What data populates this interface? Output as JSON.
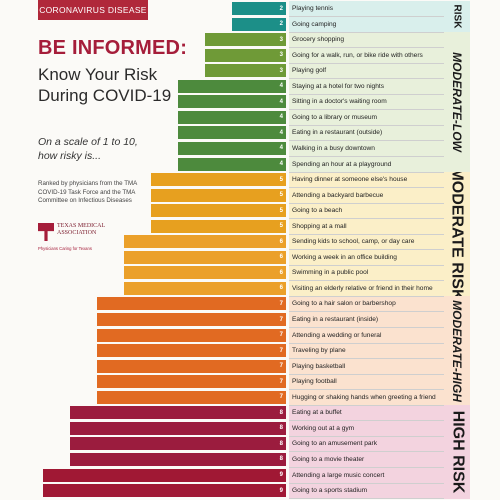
{
  "header": {
    "badge": "CORONAVIRUS DISEASE"
  },
  "title": "BE INFORMED:",
  "subtitle": "Know Your Risk During COVID-19",
  "scale_text": "On a scale of 1 to 10, how risky is...",
  "ranked_by": "Ranked by physicians from the TMA COVID-19 Task Force and the TMA Committee on Infectious Diseases",
  "logo": {
    "name": "TEXAS MEDICAL ASSOCIATION",
    "tagline": "Physicians Caring for Texans"
  },
  "colors": {
    "2": "#1c8f88",
    "3": "#6f9a37",
    "4": "#4d8a3d",
    "5": "#e7a01f",
    "6": "#eba02a",
    "7": "#e16a22",
    "8": "#9b1c3e",
    "9": "#a01834"
  },
  "category_colors": {
    "low": "#d9efec",
    "moderate_low": "#e8f0db",
    "moderate": "#fbefc8",
    "moderate_high": "#fbe2cf",
    "high": "#f3d3df"
  },
  "chart_data": {
    "type": "bar",
    "orientation": "horizontal",
    "xlim": [
      0,
      10
    ],
    "categories": [
      "Playing tennis",
      "Going camping",
      "Grocery shopping",
      "Going for a walk, run, or bike ride with others",
      "Playing golf",
      "Staying at a hotel for two nights",
      "Sitting in a doctor's waiting room",
      "Going to a library or museum",
      "Eating in a restaurant (outside)",
      "Walking in a busy downtown",
      "Spending an hour at a playground",
      "Having dinner at someone else's house",
      "Attending a backyard barbecue",
      "Going to a beach",
      "Shopping at a mall",
      "Sending kids to school, camp, or day care",
      "Working a week in an office building",
      "Swimming in a public pool",
      "Visiting an elderly relative or friend in their home",
      "Going to a hair salon or barbershop",
      "Eating in a restaurant (inside)",
      "Attending a wedding or funeral",
      "Traveling by plane",
      "Playing basketball",
      "Playing football",
      "Hugging or shaking hands when greeting a friend",
      "Eating at a buffet",
      "Working out at a gym",
      "Going to an amusement park",
      "Going to a movie theater",
      "Attending a large music concert",
      "Going to a sports stadium"
    ],
    "values": [
      2,
      2,
      3,
      3,
      3,
      4,
      4,
      4,
      4,
      4,
      4,
      5,
      5,
      5,
      5,
      6,
      6,
      6,
      6,
      7,
      7,
      7,
      7,
      7,
      7,
      7,
      8,
      8,
      8,
      8,
      9,
      9
    ],
    "risk_categories": [
      {
        "label": "RISK",
        "from": 0,
        "to": 1
      },
      {
        "label": "MODERATE-LOW",
        "from": 2,
        "to": 10
      },
      {
        "label": "MODERATE RISK",
        "from": 11,
        "to": 18
      },
      {
        "label": "MODERATE-HIGH",
        "from": 19,
        "to": 25
      },
      {
        "label": "HIGH RISK",
        "from": 26,
        "to": 31
      }
    ]
  }
}
